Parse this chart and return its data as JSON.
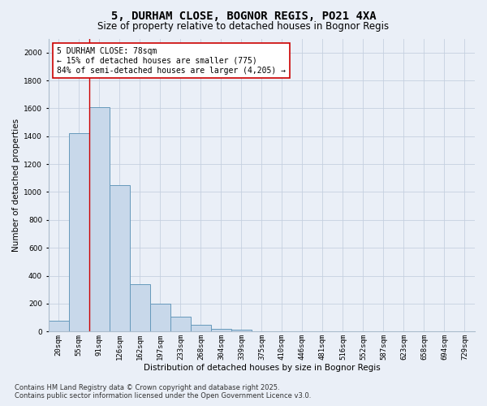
{
  "title_line1": "5, DURHAM CLOSE, BOGNOR REGIS, PO21 4XA",
  "title_line2": "Size of property relative to detached houses in Bognor Regis",
  "xlabel": "Distribution of detached houses by size in Bognor Regis",
  "ylabel": "Number of detached properties",
  "categories": [
    "20sqm",
    "55sqm",
    "91sqm",
    "126sqm",
    "162sqm",
    "197sqm",
    "233sqm",
    "268sqm",
    "304sqm",
    "339sqm",
    "375sqm",
    "410sqm",
    "446sqm",
    "481sqm",
    "516sqm",
    "552sqm",
    "587sqm",
    "623sqm",
    "658sqm",
    "694sqm",
    "729sqm"
  ],
  "values": [
    75,
    1420,
    1610,
    1050,
    340,
    200,
    105,
    50,
    20,
    15,
    0,
    0,
    0,
    0,
    0,
    0,
    0,
    0,
    0,
    0,
    0
  ],
  "bar_color": "#c8d8ea",
  "bar_edge_color": "#6699bb",
  "vline_x": 1.5,
  "annotation_text": "5 DURHAM CLOSE: 78sqm\n← 15% of detached houses are smaller (775)\n84% of semi-detached houses are larger (4,205) →",
  "annotation_box_color": "#ffffff",
  "annotation_box_edge_color": "#cc0000",
  "vline_color": "#cc0000",
  "background_color": "#eaeff7",
  "plot_bg_color": "#eaeff7",
  "ylim": [
    0,
    2100
  ],
  "yticks": [
    0,
    200,
    400,
    600,
    800,
    1000,
    1200,
    1400,
    1600,
    1800,
    2000
  ],
  "footer_line1": "Contains HM Land Registry data © Crown copyright and database right 2025.",
  "footer_line2": "Contains public sector information licensed under the Open Government Licence v3.0.",
  "grid_color": "#c5d0e0",
  "title_fontsize": 10,
  "subtitle_fontsize": 8.5,
  "axis_label_fontsize": 7.5,
  "tick_fontsize": 6.5,
  "annotation_fontsize": 7,
  "footer_fontsize": 6
}
